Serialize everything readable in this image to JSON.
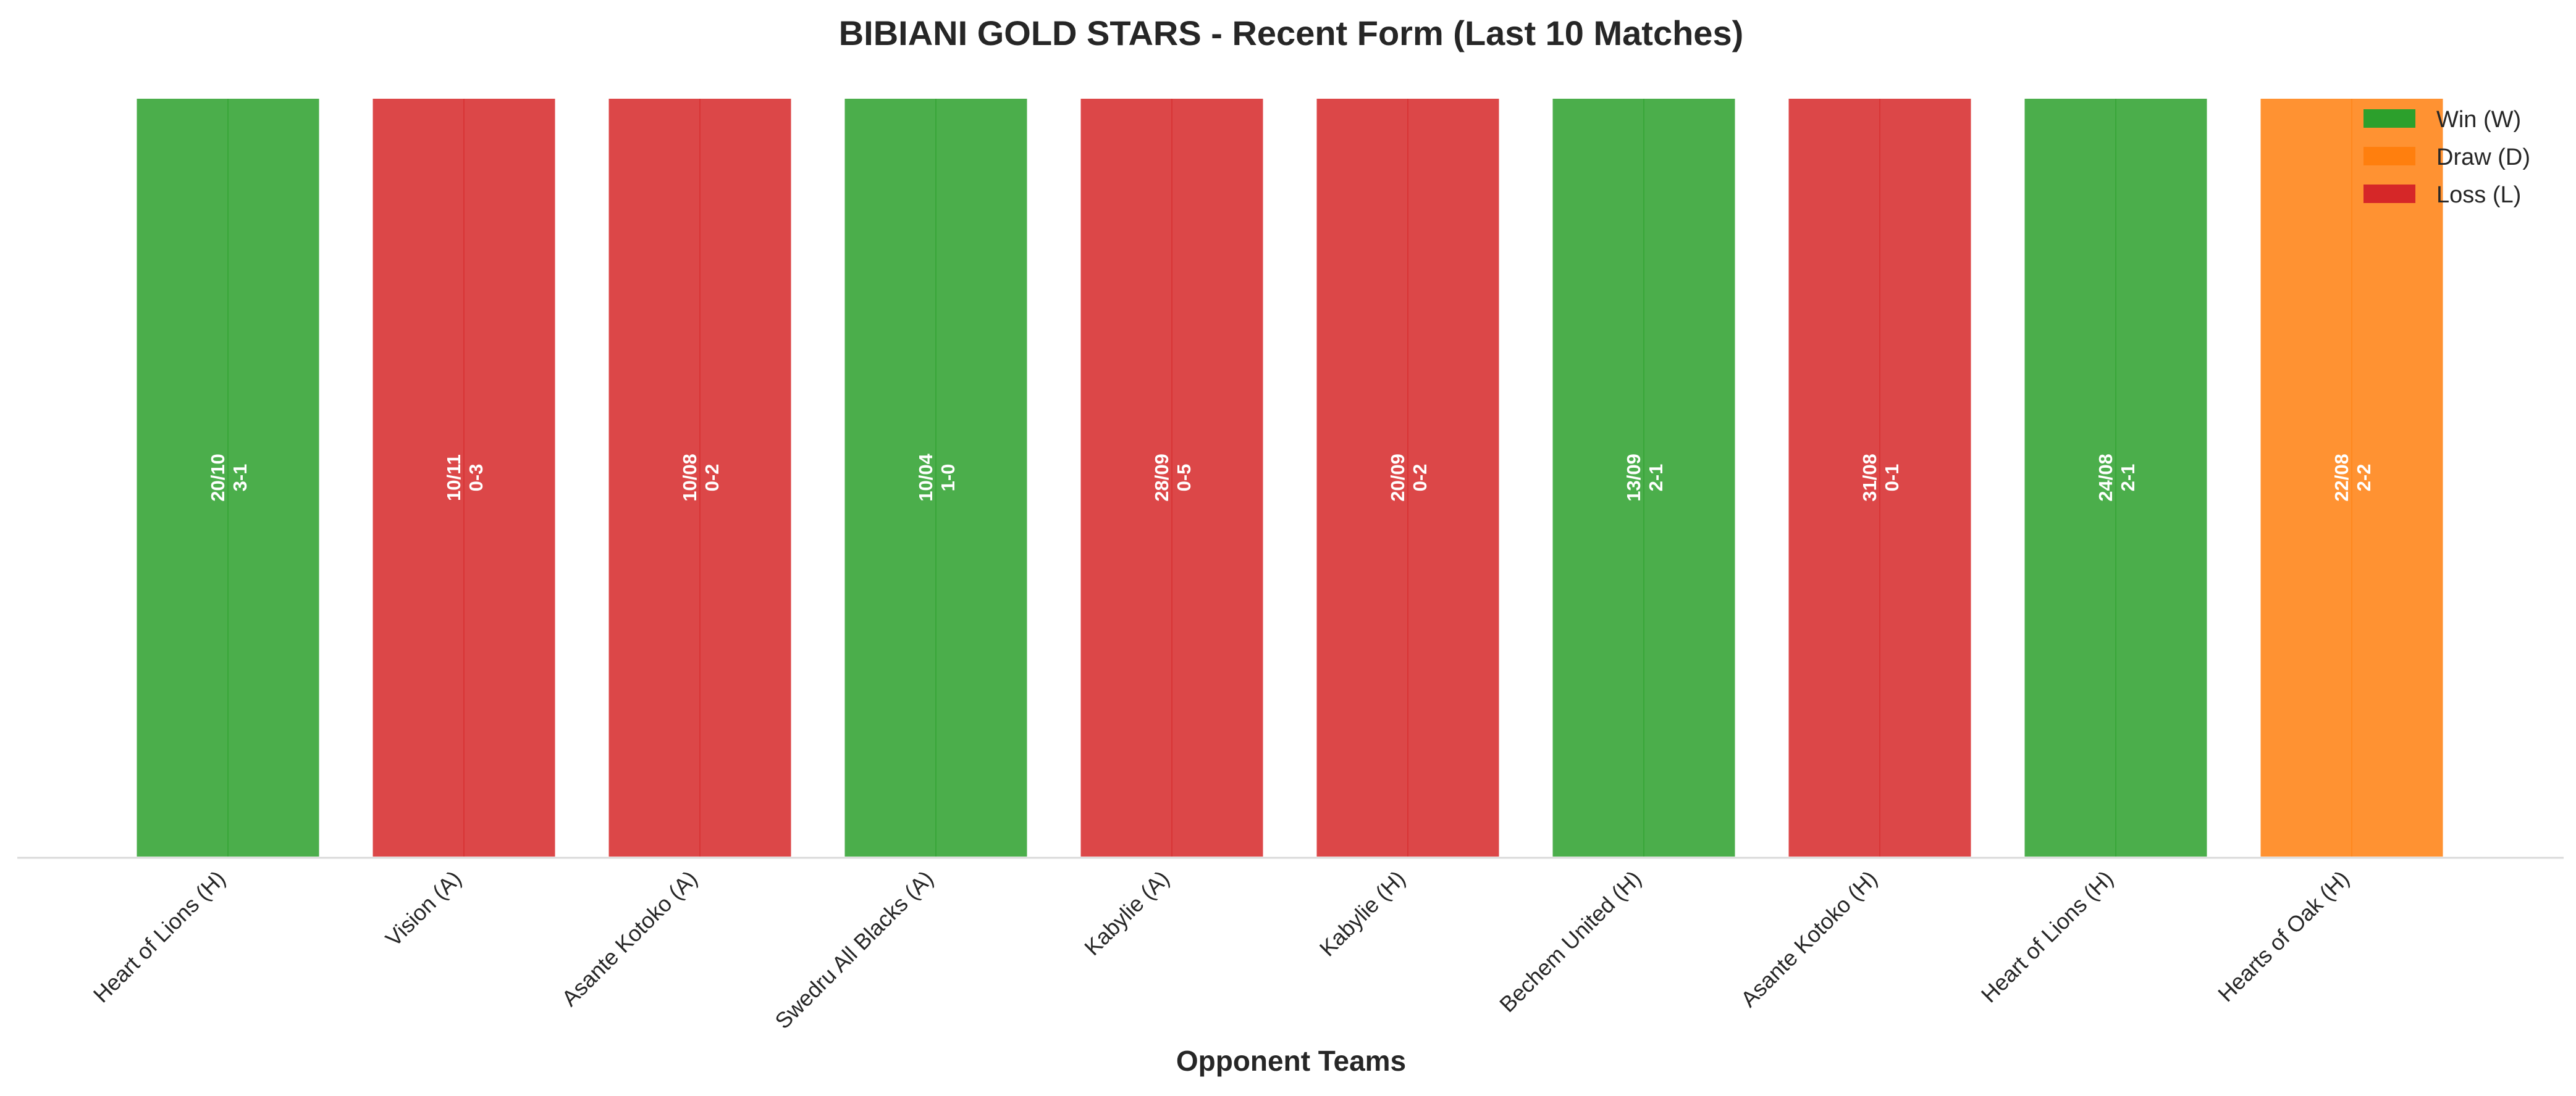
{
  "chart_data": {
    "type": "bar",
    "title": "BIBIANI GOLD STARS - Recent Form (Last 10 Matches)",
    "xlabel": "Opponent Teams",
    "ylabel": "",
    "ylim": [
      0,
      1
    ],
    "grid": false,
    "legend_position": "top-right",
    "categories": [
      "Heart of Lions (H)",
      "Vision (A)",
      "Asante Kotoko (A)",
      "Swedru All Blacks (A)",
      "Kabylie (A)",
      "Kabylie (H)",
      "Bechem United (H)",
      "Asante Kotoko (H)",
      "Heart of Lions (H)",
      "Hearts of Oak (H)"
    ],
    "values": [
      1,
      1,
      1,
      1,
      1,
      1,
      1,
      1,
      1,
      1
    ],
    "results": [
      "W",
      "L",
      "L",
      "W",
      "L",
      "L",
      "W",
      "L",
      "W",
      "D"
    ],
    "dates": [
      "20/10",
      "10/11",
      "10/08",
      "10/04",
      "28/09",
      "20/09",
      "13/09",
      "31/08",
      "24/08",
      "22/08"
    ],
    "scores": [
      "3-1",
      "0-3",
      "0-2",
      "1-0",
      "0-5",
      "0-2",
      "2-1",
      "0-1",
      "2-1",
      "2-2"
    ],
    "legend": [
      {
        "key": "W",
        "label": "Win (W)",
        "color": "#2ca02c"
      },
      {
        "key": "D",
        "label": "Draw (D)",
        "color": "#ff7f0e"
      },
      {
        "key": "L",
        "label": "Loss (L)",
        "color": "#d62728"
      }
    ]
  }
}
